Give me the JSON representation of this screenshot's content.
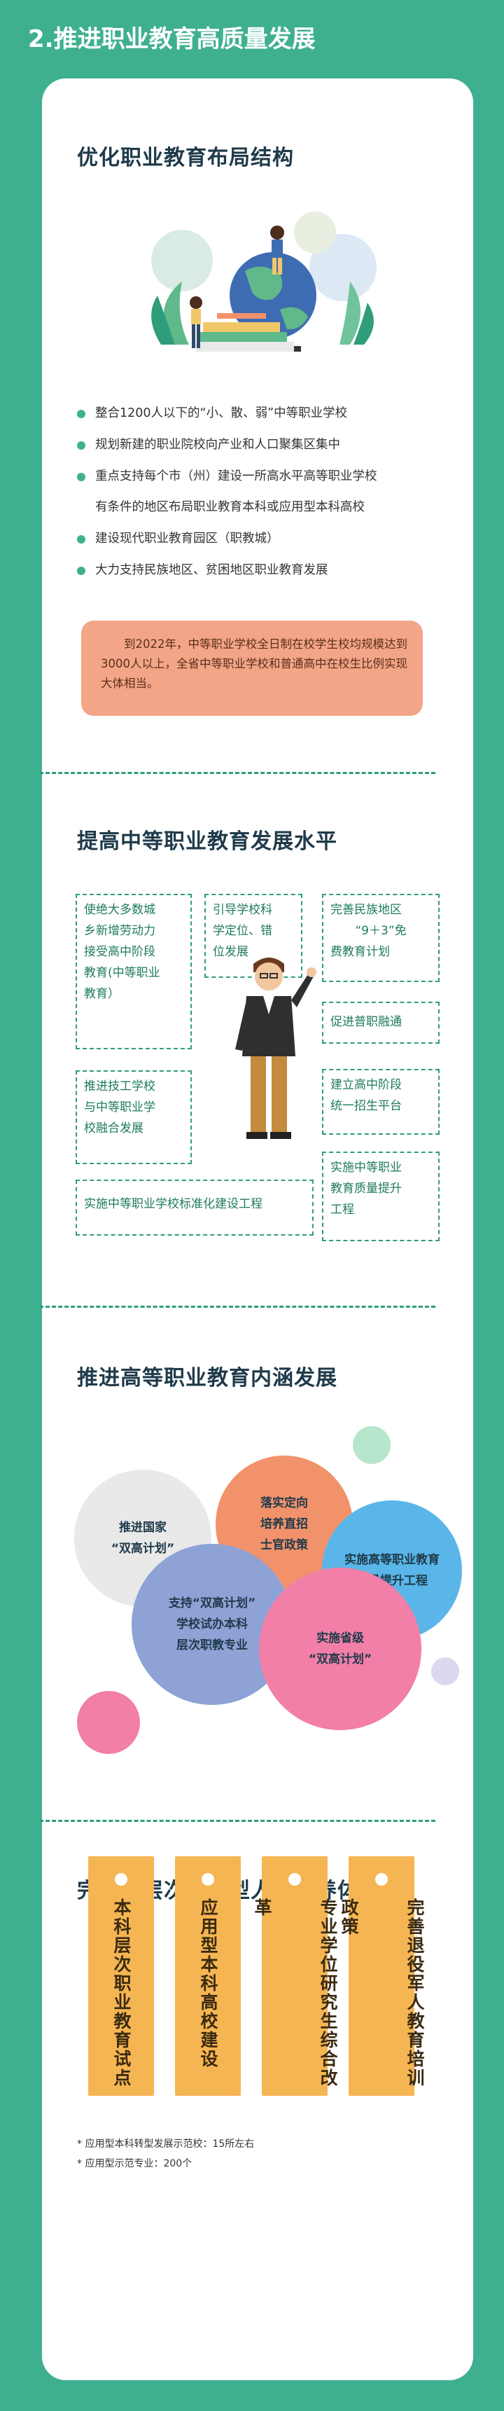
{
  "page_heading": "2.推进职业教育高质量发展",
  "section1": {
    "title": "优化职业教育布局结构",
    "bullets": [
      {
        "text": "整合1200人以下的“小、散、弱”中等职业学校"
      },
      {
        "text": "规划新建的职业院校向产业和人口聚集区集中"
      },
      {
        "text": "重点支持每个市（州）建设一所高水平高等职业学校",
        "text2": "有条件的地区布局职业教育本科或应用型本科高校"
      },
      {
        "text": "建设现代职业教育园区（职教城）"
      },
      {
        "text": "大力支持民族地区、贫困地区职业教育发展"
      }
    ],
    "note": "到2022年，中等职业学校全日制在校学生校均规模达到3000人以上，全省中等职业学校和普通高中在校生比例实现大体相当。"
  },
  "section2": {
    "title": "提高中等职业教育发展水平",
    "boxes": {
      "b1": [
        "使绝大多数城",
        "乡新增劳动力",
        "接受高中阶段",
        "教育(中等职业",
        "教育）"
      ],
      "b2": [
        "引导学校科",
        "学定位、错",
        "位发展"
      ],
      "b3": [
        "完善民族地区",
        "“9＋3”免",
        "费教育计划"
      ],
      "b4": [
        "促进普职融通"
      ],
      "b5": [
        "推进技工学校",
        "与中等职业学",
        "校融合发展"
      ],
      "b6": [
        "建立高中阶段",
        "统一招生平台"
      ],
      "b7": [
        "实施中等职业学校标准化建设工程"
      ],
      "b8": [
        "实施中等职业",
        "教育质量提升",
        "工程"
      ]
    }
  },
  "section3": {
    "title": "推进高等职业教育内涵发展",
    "bubbles": {
      "gray": [
        "推进国家",
        "“双高计划”"
      ],
      "orange": [
        "落实定向",
        "培养直招",
        "士官政策"
      ],
      "blue": [
        "实施高等职业教育",
        "质量提升工程"
      ],
      "purple": [
        "支持“双高计划”",
        "学校试办本科",
        "层次职教专业"
      ],
      "pink": [
        "实施省级",
        "“双高计划”"
      ]
    }
  },
  "section4": {
    "title": "完善高层次应用型人才培养体系",
    "bookmarks": [
      "本科层次职业教育试点",
      "应用型本科高校建设",
      "专业学位研究生综合改革",
      "完善退役军人教育培训政策"
    ],
    "footnotes": [
      "* 应用型本科转型发展示范校：15所左右",
      "* 应用型示范专业：200个"
    ]
  },
  "colors": {
    "background": "#3fb08f",
    "accent_green": "#2f9d7b",
    "note_box": "#f3a587",
    "bookmark": "#f6b553",
    "bubble_gray": "#e9e9e9",
    "bubble_orange": "#f2926b",
    "bubble_blue": "#5ab6e8",
    "bubble_purple": "#8ea2d6",
    "bubble_pink": "#f17fa8"
  }
}
